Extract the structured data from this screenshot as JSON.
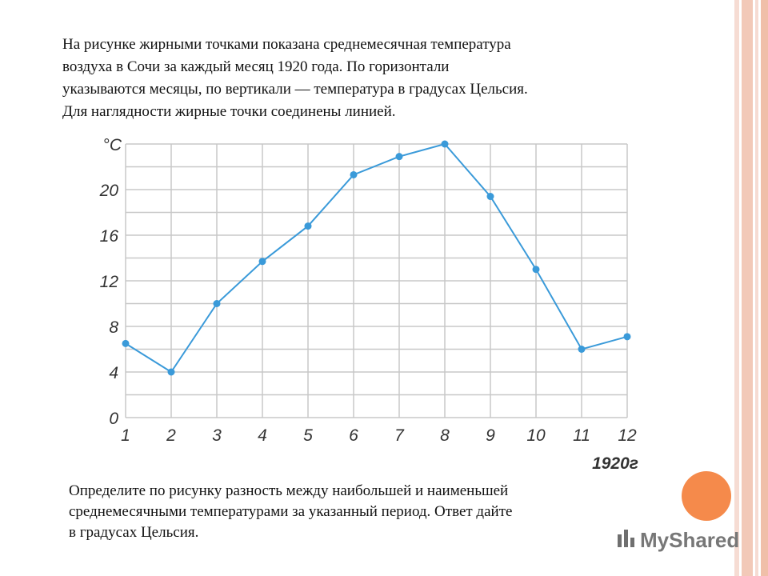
{
  "text_top": [
    "На рисунке жирными точками показана среднемесячная температура",
    "воздуха в Сочи за каждый месяц 1920 года. По горизонтали",
    "указываются месяцы, по вертикали — температура в градусах Цельсия.",
    "Для наглядности жирные точки соединены линией."
  ],
  "chart_data": {
    "type": "line",
    "y_label": "°C",
    "x_label": "1920г",
    "x": [
      1,
      2,
      3,
      4,
      5,
      6,
      7,
      8,
      9,
      10,
      11,
      12
    ],
    "series": [
      {
        "color": "#3a9ad9",
        "values": [
          6.5,
          4,
          10,
          13.7,
          16.8,
          21.3,
          22.9,
          24,
          19.4,
          13,
          6,
          7.1
        ]
      }
    ],
    "xlim": [
      1,
      12
    ],
    "xticks": [
      1,
      2,
      3,
      4,
      5,
      6,
      7,
      8,
      9,
      10,
      11,
      12
    ],
    "ylim": [
      0,
      24
    ],
    "yticks": [
      0,
      4,
      8,
      12,
      16,
      20
    ],
    "minor_yticks": [
      2,
      6,
      10,
      14,
      18,
      22,
      24
    ],
    "grid": true
  },
  "text_bottom": [
    "Определите по рисунку разность между наибольшей и наименьшей",
    "среднемесячными температурами за указанный период. Ответ дайте",
    "в градусах Цельсия."
  ],
  "watermark": "MyShared"
}
